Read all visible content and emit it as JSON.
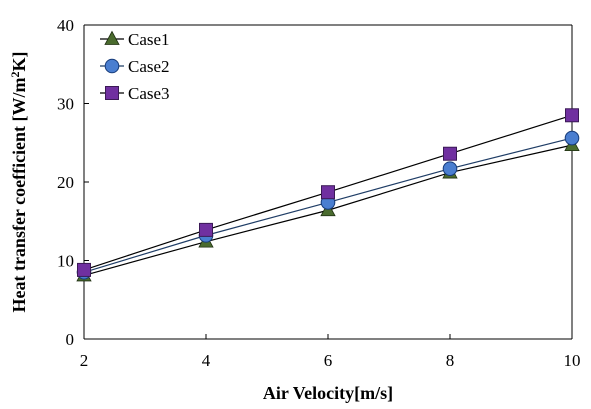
{
  "chart_data": {
    "type": "line",
    "title": "",
    "xlabel": "Air Velocity[m/s]",
    "ylabel_parts": [
      "Heat transfer coefficient [W/m",
      "2",
      "K]"
    ],
    "x": [
      2,
      4,
      6,
      8,
      10
    ],
    "xlim": [
      2,
      10
    ],
    "ylim": [
      0,
      40
    ],
    "xticks": [
      "2",
      "4",
      "6",
      "8",
      "10"
    ],
    "yticks": [
      "0",
      "10",
      "20",
      "30",
      "40"
    ],
    "grid": false,
    "legend_position": "top-left",
    "series": [
      {
        "name": "Case1",
        "marker": "triangle",
        "marker_color": "#4a6b2e",
        "line_color": "#000000",
        "values": [
          8.1,
          12.4,
          16.4,
          21.2,
          24.7
        ]
      },
      {
        "name": "Case2",
        "marker": "circle",
        "marker_color": "#4a7ed0",
        "line_color": "#1f3d66",
        "values": [
          8.5,
          13.2,
          17.4,
          21.7,
          25.6
        ]
      },
      {
        "name": "Case3",
        "marker": "square",
        "marker_color": "#7030a0",
        "line_color": "#000000",
        "values": [
          8.8,
          13.9,
          18.7,
          23.6,
          28.5
        ]
      }
    ]
  }
}
